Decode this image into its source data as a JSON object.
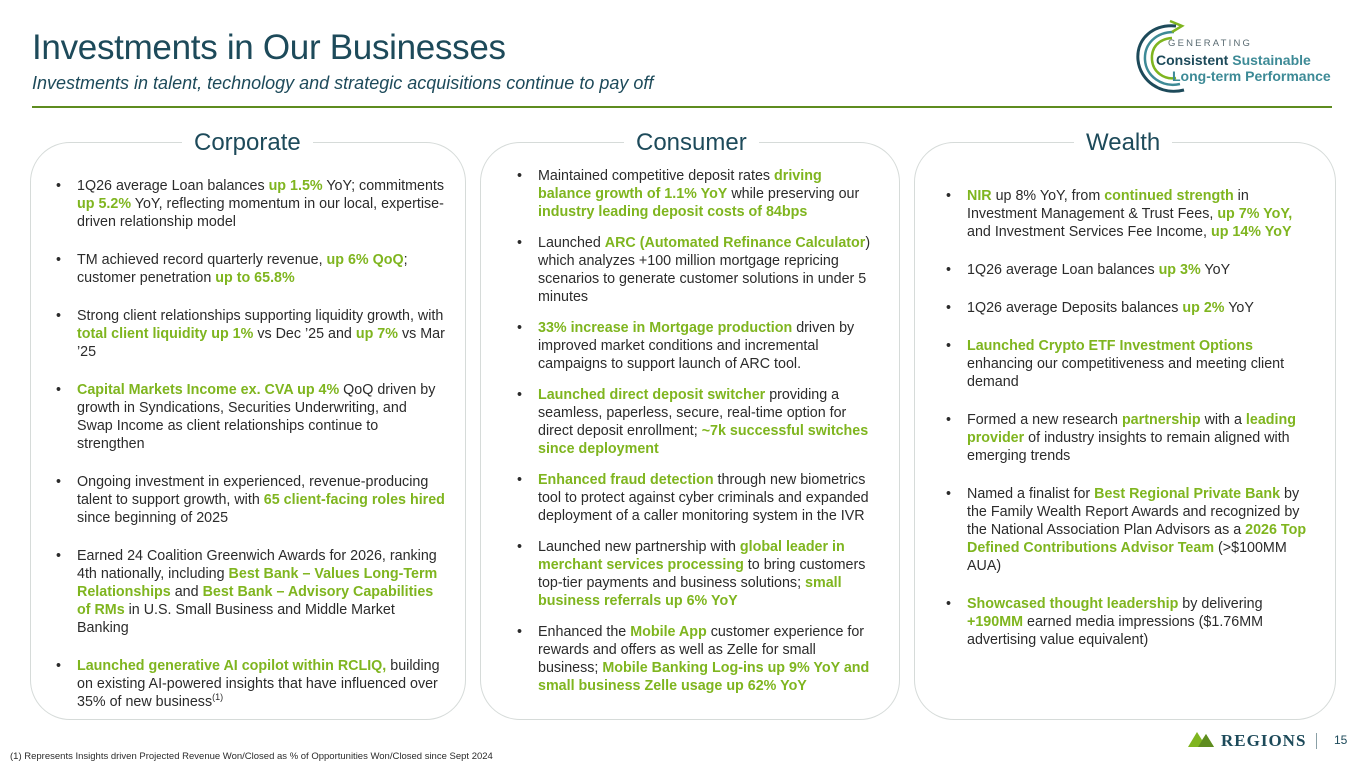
{
  "header": {
    "title": "Investments in Our Businesses",
    "subtitle": "Investments in talent, technology and strategic acquisitions continue to pay off"
  },
  "logo": {
    "line1": "GENERATING",
    "line2a": "Consistent",
    "line2b": "Sustainable",
    "line3": "Long-term Performance"
  },
  "columns": [
    {
      "heading": "Corporate",
      "bullets": [
        [
          [
            "1Q26 average Loan balances ",
            false
          ],
          [
            "up 1.5%",
            true
          ],
          [
            " YoY; commitments ",
            false
          ],
          [
            "up 5.2%",
            true
          ],
          [
            " YoY, reflecting  momentum in our local, expertise-driven relationship model",
            false
          ]
        ],
        [
          [
            "TM achieved record quarterly revenue, ",
            false
          ],
          [
            "up 6% QoQ",
            true
          ],
          [
            "; customer penetration ",
            false
          ],
          [
            "up to 65.8%",
            true
          ]
        ],
        [
          [
            "Strong client relationships supporting liquidity growth, with ",
            false
          ],
          [
            "total client liquidity up 1%",
            true
          ],
          [
            " vs Dec ’25 and ",
            false
          ],
          [
            "up 7%",
            true
          ],
          [
            " vs Mar ’25",
            false
          ]
        ],
        [
          [
            "Capital Markets Income ex. CVA up 4%",
            true
          ],
          [
            " QoQ driven by growth in Syndications, Securities Underwriting, and Swap Income as client relationships continue to strengthen",
            false
          ]
        ],
        [
          [
            "Ongoing investment in experienced, revenue-producing talent to support growth, with ",
            false
          ],
          [
            "65 client-facing roles hired",
            true
          ],
          [
            " since beginning of 2025",
            false
          ]
        ],
        [
          [
            "Earned 24 Coalition Greenwich Awards for 2026, ranking 4th nationally, including ",
            false
          ],
          [
            "Best Bank – Values Long-Term Relationships",
            true
          ],
          [
            " and ",
            false
          ],
          [
            "Best Bank – Advisory Capabilities of RMs",
            true
          ],
          [
            " in U.S. Small Business and Middle Market Banking",
            false
          ]
        ],
        [
          [
            "Launched generative AI copilot within RCLIQ,",
            true
          ],
          [
            " building on existing AI-powered insights that have influenced over 35% of new business",
            false
          ],
          [
            "(1)",
            "sup"
          ]
        ]
      ]
    },
    {
      "heading": "Consumer",
      "bullets": [
        [
          [
            "Maintained competitive deposit rates ",
            false
          ],
          [
            "driving balance growth of 1.1% YoY",
            true
          ],
          [
            " while preserving our ",
            false
          ],
          [
            "industry leading deposit costs of 84bps",
            true
          ]
        ],
        [
          [
            "Launched ",
            false
          ],
          [
            "ARC (Automated Refinance Calculator",
            true
          ],
          [
            ") which analyzes +100 million mortgage  repricing scenarios to generate customer solutions  in under 5 minutes",
            false
          ]
        ],
        [
          [
            "33% increase in Mortgage production",
            true
          ],
          [
            " driven by improved market conditions and incremental campaigns to support launch of ARC tool.",
            false
          ]
        ],
        [
          [
            "Launched direct deposit switcher",
            true
          ],
          [
            " providing a seamless, paperless, secure, real-time option for direct deposit enrollment; ",
            false
          ],
          [
            "~7k successful switches since deployment",
            true
          ]
        ],
        [
          [
            "Enhanced fraud detection",
            true
          ],
          [
            " through new biometrics tool to protect against cyber criminals and expanded deployment of a caller monitoring system in the IVR",
            false
          ]
        ],
        [
          [
            "Launched new partnership with ",
            false
          ],
          [
            "global leader in merchant services processing",
            true
          ],
          [
            " to bring customers top-tier payments and business solutions; ",
            false
          ],
          [
            "small business referrals up 6% YoY",
            true
          ]
        ],
        [
          [
            "Enhanced the ",
            false
          ],
          [
            "Mobile App",
            true
          ],
          [
            " customer experience for rewards and offers as well as Zelle for small business; ",
            false
          ],
          [
            "Mobile Banking Log-ins up 9% YoY and small business Zelle usage up 62% YoY",
            true
          ]
        ]
      ]
    },
    {
      "heading": "Wealth",
      "bullets": [
        [
          [
            "NIR",
            true
          ],
          [
            " up 8% YoY, from ",
            false
          ],
          [
            "continued strength",
            true
          ],
          [
            " in Investment Management & Trust Fees, ",
            false
          ],
          [
            "up 7% YoY,",
            true
          ],
          [
            " and Investment Services Fee Income, ",
            false
          ],
          [
            "up 14% YoY",
            true
          ]
        ],
        [
          [
            "1Q26 average Loan balances ",
            false
          ],
          [
            "up 3%",
            true
          ],
          [
            " YoY",
            false
          ]
        ],
        [
          [
            "1Q26 average Deposits balances ",
            false
          ],
          [
            "up 2%",
            true
          ],
          [
            " YoY",
            false
          ]
        ],
        [
          [
            "Launched Crypto ETF Investment Options",
            true
          ],
          [
            " enhancing our competitiveness and meeting client demand",
            false
          ]
        ],
        [
          [
            "Formed a new research ",
            false
          ],
          [
            "partnership",
            true
          ],
          [
            " with a ",
            false
          ],
          [
            "leading provider",
            true
          ],
          [
            " of industry insights to remain aligned with emerging trends",
            false
          ]
        ],
        [
          [
            "Named a finalist for ",
            false
          ],
          [
            "Best Regional Private Bank",
            true
          ],
          [
            " by the Family Wealth Report Awards and recognized by the National Association Plan Advisors as a ",
            false
          ],
          [
            "2026 Top Defined Contributions Advisor Team",
            true
          ],
          [
            " (>$100MM AUA)",
            false
          ]
        ],
        [
          [
            "Showcased thought leadership",
            true
          ],
          [
            " by delivering ",
            false
          ],
          [
            "+190MM",
            true
          ],
          [
            " earned media impressions ($1.76MM advertising value equivalent)",
            false
          ]
        ]
      ]
    }
  ],
  "footer": {
    "footnote": "(1) Represents Insights driven Projected Revenue Won/Closed as % of Opportunities Won/Closed since Sept 2024",
    "brand": "REGIONS",
    "page": "15"
  },
  "colors": {
    "navy": "#1d4a5a",
    "highlight": "#7fb51f",
    "rule": "#5e8c1f",
    "teal": "#3d8a96"
  },
  "icons": [
    "swirl-arrow-logo-icon",
    "regions-pyramid-logo-icon"
  ]
}
